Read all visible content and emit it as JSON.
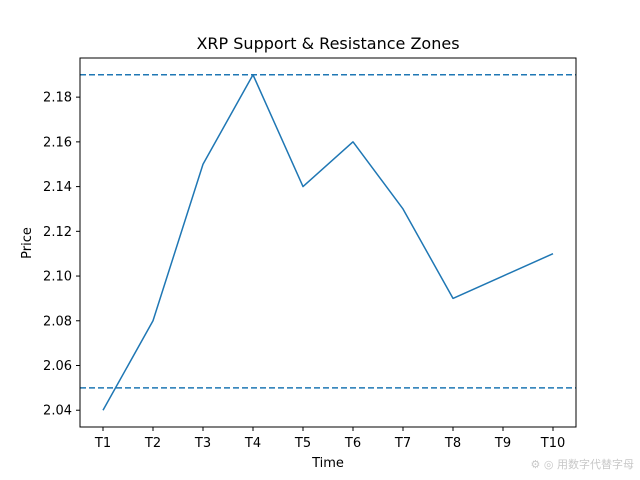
{
  "chart_data": {
    "type": "line",
    "title": "XRP Support & Resistance Zones",
    "xlabel": "Time",
    "ylabel": "Price",
    "categories": [
      "T1",
      "T2",
      "T3",
      "T4",
      "T5",
      "T6",
      "T7",
      "T8",
      "T9",
      "T10"
    ],
    "series": [
      {
        "values": [
          2.04,
          2.08,
          2.15,
          2.19,
          2.14,
          2.16,
          2.13,
          2.09,
          2.1,
          2.11
        ],
        "color": "#1f77b4"
      }
    ],
    "hlines": [
      {
        "value": 2.19,
        "style": "dashed",
        "color": "#1f77b4"
      },
      {
        "value": 2.05,
        "style": "dashed",
        "color": "#1f77b4"
      }
    ],
    "yticks": [
      2.04,
      2.06,
      2.08,
      2.1,
      2.12,
      2.14,
      2.16,
      2.18
    ],
    "ylim": [
      2.0325,
      2.1975
    ],
    "grid": false,
    "legend": "none"
  },
  "watermark": "用数字代替字母"
}
